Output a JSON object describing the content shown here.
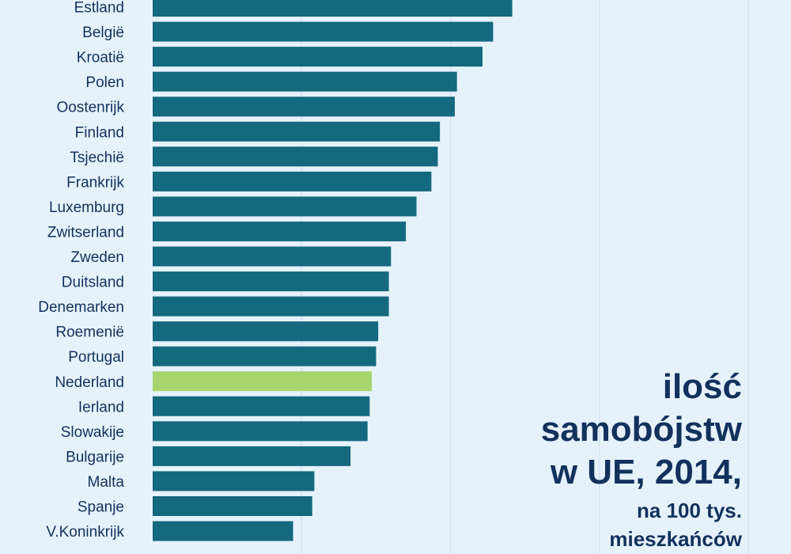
{
  "colors": {
    "bar": "#14697f",
    "highlight": "#a8d46f",
    "grid": "#d3e4f1",
    "text": "#12315c",
    "background": "#e6f2fb"
  },
  "title": {
    "line1": "ilość",
    "line2": "samobójstw",
    "line3": "w UE, 2014,",
    "subtitle1": "na 100 tys.",
    "subtitle2": "mieszkańców"
  },
  "chart_data": {
    "type": "bar",
    "orientation": "horizontal",
    "categories": [
      "Estland",
      "België",
      "Kroatië",
      "Polen",
      "Oostenrijk",
      "Finland",
      "Tsjechië",
      "Frankrijk",
      "Luxemburg",
      "Zwitserland",
      "Zweden",
      "Duitsland",
      "Denemarken",
      "Roemenië",
      "Portugal",
      "Nederland",
      "Ierland",
      "Slowakije",
      "Bulgarije",
      "Malta",
      "Spanje",
      "V.Koninkrijk"
    ],
    "values": [
      16.9,
      16.0,
      15.5,
      14.3,
      14.2,
      13.5,
      13.4,
      13.1,
      12.4,
      11.9,
      11.2,
      11.1,
      11.1,
      10.6,
      10.5,
      10.3,
      10.2,
      10.1,
      9.3,
      7.6,
      7.5,
      6.6
    ],
    "highlight": "Nederland",
    "xlim": [
      0,
      30
    ],
    "grid": true
  }
}
